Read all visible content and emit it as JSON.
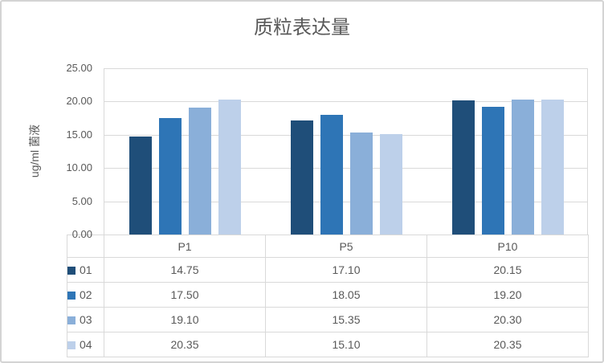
{
  "chart_data": {
    "type": "bar",
    "title": "质粒表达量",
    "ylabel": "ug/ml 菌液",
    "xlabel": "",
    "categories": [
      "P1",
      "P5",
      "P10"
    ],
    "series": [
      {
        "name": "01",
        "color": "#1F4E79",
        "values": [
          14.75,
          17.1,
          20.15
        ]
      },
      {
        "name": "02",
        "color": "#2E75B6",
        "values": [
          17.5,
          18.05,
          19.2
        ]
      },
      {
        "name": "03",
        "color": "#8AAFD9",
        "values": [
          19.1,
          15.35,
          20.3
        ]
      },
      {
        "name": "04",
        "color": "#BDD0EA",
        "values": [
          20.35,
          15.1,
          20.35
        ]
      }
    ],
    "ylim": [
      0,
      25
    ],
    "yticks": [
      0,
      5,
      10,
      15,
      20,
      25
    ],
    "ytick_labels": [
      "0.00",
      "5.00",
      "10.00",
      "15.00",
      "20.00",
      "25.00"
    ],
    "grid": true,
    "legend_position": "data-table-left",
    "data_table": true,
    "value_decimals": 2,
    "colors": {
      "text": "#595959",
      "gridline": "#D9D9D9",
      "table_border": "#D9D9D9",
      "background": "#FFFFFF"
    }
  }
}
